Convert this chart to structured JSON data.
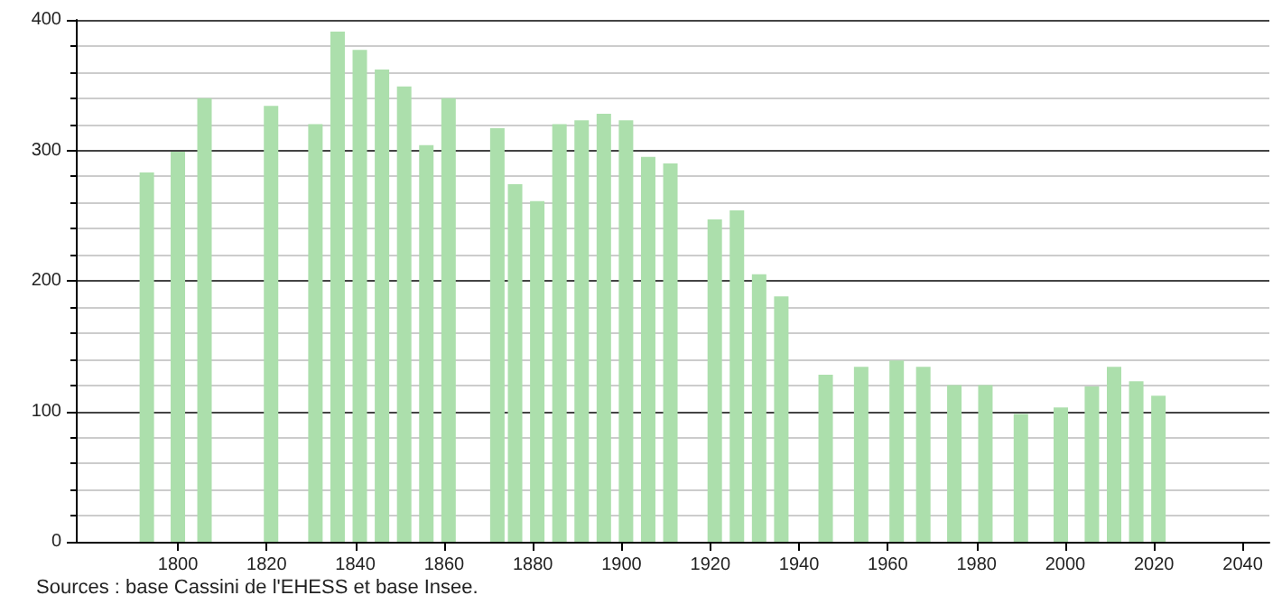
{
  "chart_data": {
    "type": "bar",
    "color": "#acdfac",
    "x": [
      1793,
      1800,
      1806,
      1821,
      1831,
      1836,
      1841,
      1846,
      1851,
      1856,
      1861,
      1872,
      1876,
      1881,
      1886,
      1891,
      1896,
      1901,
      1906,
      1911,
      1921,
      1926,
      1931,
      1936,
      1946,
      1954,
      1962,
      1968,
      1975,
      1982,
      1990,
      1999,
      2006,
      2011,
      2016,
      2021
    ],
    "values": [
      283,
      299,
      340,
      334,
      320,
      391,
      377,
      362,
      349,
      304,
      340,
      317,
      274,
      261,
      320,
      323,
      328,
      323,
      295,
      290,
      247,
      254,
      205,
      188,
      128,
      134,
      139,
      134,
      120,
      120,
      98,
      103,
      119,
      134,
      123,
      112
    ],
    "xlim": [
      1777,
      2046
    ],
    "xticks": [
      1800,
      1820,
      1840,
      1860,
      1880,
      1900,
      1920,
      1940,
      1960,
      1980,
      2000,
      2020,
      2040
    ],
    "ylim": [
      0,
      400
    ],
    "yticks": [
      0,
      100,
      200,
      300,
      400
    ],
    "grid": "y",
    "annotations": [
      "Sources : base Cassini de l'EHESS et base Insee."
    ]
  }
}
